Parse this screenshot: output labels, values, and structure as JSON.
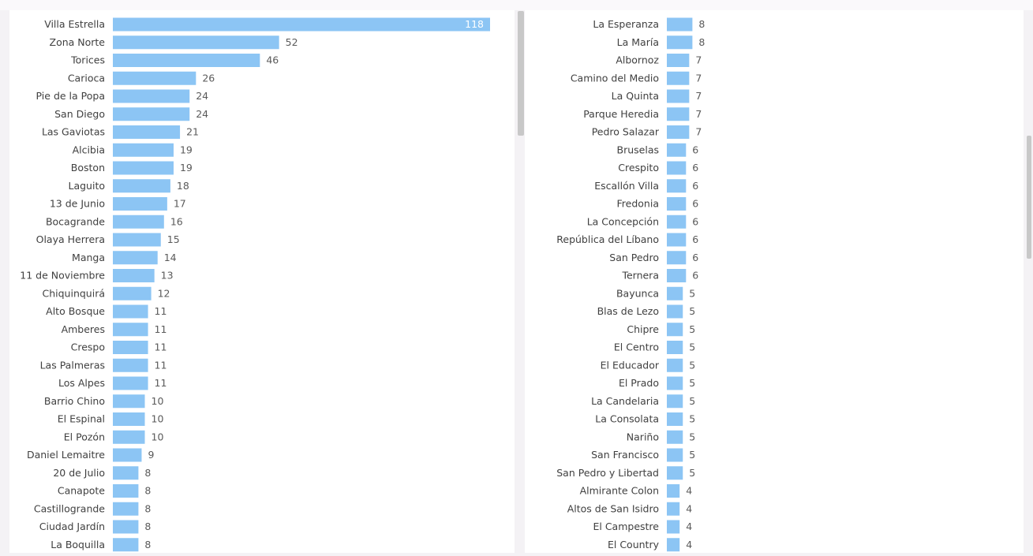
{
  "chart_data": [
    {
      "type": "bar",
      "orientation": "horizontal",
      "categories": [
        "Villa Estrella",
        "Zona Norte",
        "Torices",
        "Carioca",
        "Pie de la Popa",
        "San Diego",
        "Las Gaviotas",
        "Alcibia",
        "Boston",
        "Laguito",
        "13 de Junio",
        "Bocagrande",
        "Olaya Herrera",
        "Manga",
        "11 de Noviembre",
        "Chiquinquirá",
        "Alto Bosque",
        "Amberes",
        "Crespo",
        "Las Palmeras",
        "Los Alpes",
        "Barrio Chino",
        "El Espinal",
        "El Pozón",
        "Daniel Lemaitre",
        "20 de Julio",
        "Canapote",
        "Castillogrande",
        "Ciudad Jardín",
        "La Boquilla"
      ],
      "values": [
        118,
        52,
        46,
        26,
        24,
        24,
        21,
        19,
        19,
        18,
        17,
        16,
        15,
        14,
        13,
        12,
        11,
        11,
        11,
        11,
        11,
        10,
        10,
        10,
        9,
        8,
        8,
        8,
        8,
        8
      ],
      "xlim": [
        0,
        118
      ],
      "bar_color": "#8cc5f4",
      "grid": false,
      "labels_inside_max": true
    },
    {
      "type": "bar",
      "orientation": "horizontal",
      "categories": [
        "La Esperanza",
        "La María",
        "Albornoz",
        "Camino del Medio",
        "La Quinta",
        "Parque Heredia",
        "Pedro Salazar",
        "Bruselas",
        "Crespito",
        "Escallón Villa",
        "Fredonia",
        "La Concepción",
        "República del Líbano",
        "San Pedro",
        "Ternera",
        "Bayunca",
        "Blas de Lezo",
        "Chipre",
        "El Centro",
        "El Educador",
        "El Prado",
        "La Candelaria",
        "La Consolata",
        "Nariño",
        "San Francisco",
        "San Pedro y Libertad",
        "Almirante Colon",
        "Altos de San Isidro",
        "El Campestre",
        "El Country"
      ],
      "values": [
        8,
        8,
        7,
        7,
        7,
        7,
        7,
        6,
        6,
        6,
        6,
        6,
        6,
        6,
        6,
        5,
        5,
        5,
        5,
        5,
        5,
        5,
        5,
        5,
        5,
        5,
        4,
        4,
        4,
        4
      ],
      "xlim": [
        0,
        118
      ],
      "bar_color": "#8cc5f4",
      "grid": false
    }
  ],
  "colors": {
    "bar": "#8cc5f4",
    "label": "#404040",
    "value_label": "#5a5a5a",
    "value_label_inside": "#ffffff",
    "panel_bg": "#ffffff",
    "page_bg": "#f4f2f5",
    "scroll_thumb": "#c8c8c8"
  }
}
